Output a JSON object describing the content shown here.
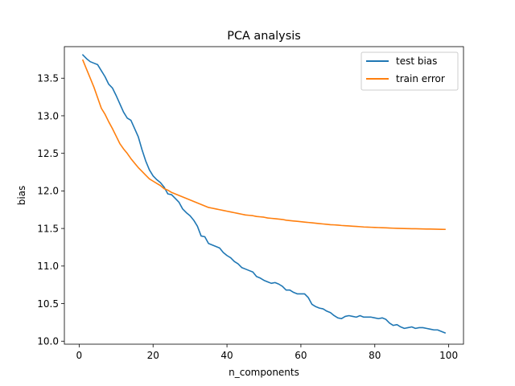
{
  "chart_data": {
    "type": "line",
    "title": "PCA analysis",
    "xlabel": "n_components",
    "ylabel": "bias",
    "xlim": [
      -4,
      104
    ],
    "ylim": [
      9.96,
      13.92
    ],
    "xticks": [
      0,
      20,
      40,
      60,
      80,
      100
    ],
    "yticks": [
      10.0,
      10.5,
      11.0,
      11.5,
      12.0,
      12.5,
      13.0,
      13.5
    ],
    "ytick_labels": [
      "10.0",
      "10.5",
      "11.0",
      "11.5",
      "12.0",
      "12.5",
      "13.0",
      "13.5"
    ],
    "grid": false,
    "legend_position": "top-right",
    "series": [
      {
        "name": "test bias",
        "color": "#1f77b4",
        "points": [
          [
            1,
            13.81
          ],
          [
            2,
            13.76
          ],
          [
            3,
            13.72
          ],
          [
            4,
            13.7
          ],
          [
            5,
            13.68
          ],
          [
            6,
            13.6
          ],
          [
            7,
            13.52
          ],
          [
            8,
            13.42
          ],
          [
            9,
            13.37
          ],
          [
            10,
            13.27
          ],
          [
            11,
            13.16
          ],
          [
            12,
            13.05
          ],
          [
            13,
            12.97
          ],
          [
            14,
            12.94
          ],
          [
            15,
            12.83
          ],
          [
            16,
            12.72
          ],
          [
            17,
            12.55
          ],
          [
            18,
            12.4
          ],
          [
            19,
            12.28
          ],
          [
            20,
            12.2
          ],
          [
            21,
            12.15
          ],
          [
            22,
            12.11
          ],
          [
            23,
            12.05
          ],
          [
            24,
            11.96
          ],
          [
            25,
            11.95
          ],
          [
            26,
            11.9
          ],
          [
            27,
            11.85
          ],
          [
            28,
            11.76
          ],
          [
            29,
            11.71
          ],
          [
            30,
            11.67
          ],
          [
            31,
            11.61
          ],
          [
            32,
            11.53
          ],
          [
            33,
            11.4
          ],
          [
            34,
            11.39
          ],
          [
            35,
            11.3
          ],
          [
            36,
            11.28
          ],
          [
            37,
            11.26
          ],
          [
            38,
            11.24
          ],
          [
            39,
            11.18
          ],
          [
            40,
            11.14
          ],
          [
            41,
            11.11
          ],
          [
            42,
            11.06
          ],
          [
            43,
            11.03
          ],
          [
            44,
            10.98
          ],
          [
            45,
            10.96
          ],
          [
            46,
            10.94
          ],
          [
            47,
            10.92
          ],
          [
            48,
            10.86
          ],
          [
            49,
            10.84
          ],
          [
            50,
            10.81
          ],
          [
            51,
            10.79
          ],
          [
            52,
            10.77
          ],
          [
            53,
            10.78
          ],
          [
            54,
            10.76
          ],
          [
            55,
            10.73
          ],
          [
            56,
            10.68
          ],
          [
            57,
            10.68
          ],
          [
            58,
            10.65
          ],
          [
            59,
            10.63
          ],
          [
            60,
            10.63
          ],
          [
            61,
            10.63
          ],
          [
            62,
            10.58
          ],
          [
            63,
            10.49
          ],
          [
            64,
            10.46
          ],
          [
            65,
            10.44
          ],
          [
            66,
            10.43
          ],
          [
            67,
            10.4
          ],
          [
            68,
            10.38
          ],
          [
            69,
            10.34
          ],
          [
            70,
            10.31
          ],
          [
            71,
            10.3
          ],
          [
            72,
            10.33
          ],
          [
            73,
            10.34
          ],
          [
            74,
            10.33
          ],
          [
            75,
            10.32
          ],
          [
            76,
            10.34
          ],
          [
            77,
            10.32
          ],
          [
            78,
            10.32
          ],
          [
            79,
            10.32
          ],
          [
            80,
            10.31
          ],
          [
            81,
            10.3
          ],
          [
            82,
            10.31
          ],
          [
            83,
            10.29
          ],
          [
            84,
            10.24
          ],
          [
            85,
            10.21
          ],
          [
            86,
            10.22
          ],
          [
            87,
            10.19
          ],
          [
            88,
            10.17
          ],
          [
            89,
            10.18
          ],
          [
            90,
            10.19
          ],
          [
            91,
            10.17
          ],
          [
            92,
            10.18
          ],
          [
            93,
            10.18
          ],
          [
            94,
            10.17
          ],
          [
            95,
            10.16
          ],
          [
            96,
            10.15
          ],
          [
            97,
            10.15
          ],
          [
            98,
            10.13
          ],
          [
            99,
            10.11
          ]
        ]
      },
      {
        "name": "train error",
        "color": "#ff7f0e",
        "points": [
          [
            1,
            13.74
          ],
          [
            2,
            13.62
          ],
          [
            3,
            13.5
          ],
          [
            4,
            13.38
          ],
          [
            5,
            13.24
          ],
          [
            6,
            13.1
          ],
          [
            7,
            13.02
          ],
          [
            8,
            12.92
          ],
          [
            9,
            12.83
          ],
          [
            10,
            12.73
          ],
          [
            11,
            12.63
          ],
          [
            12,
            12.56
          ],
          [
            13,
            12.5
          ],
          [
            14,
            12.43
          ],
          [
            15,
            12.37
          ],
          [
            16,
            12.31
          ],
          [
            17,
            12.26
          ],
          [
            18,
            12.21
          ],
          [
            19,
            12.16
          ],
          [
            20,
            12.13
          ],
          [
            21,
            12.1
          ],
          [
            22,
            12.07
          ],
          [
            23,
            12.03
          ],
          [
            24,
            12.01
          ],
          [
            25,
            11.98
          ],
          [
            26,
            11.96
          ],
          [
            27,
            11.94
          ],
          [
            28,
            11.92
          ],
          [
            29,
            11.9
          ],
          [
            30,
            11.88
          ],
          [
            31,
            11.86
          ],
          [
            32,
            11.84
          ],
          [
            33,
            11.82
          ],
          [
            34,
            11.8
          ],
          [
            35,
            11.78
          ],
          [
            36,
            11.77
          ],
          [
            37,
            11.76
          ],
          [
            38,
            11.75
          ],
          [
            39,
            11.74
          ],
          [
            40,
            11.73
          ],
          [
            41,
            11.72
          ],
          [
            42,
            11.71
          ],
          [
            43,
            11.7
          ],
          [
            44,
            11.69
          ],
          [
            45,
            11.68
          ],
          [
            46,
            11.675
          ],
          [
            47,
            11.67
          ],
          [
            48,
            11.66
          ],
          [
            49,
            11.655
          ],
          [
            50,
            11.65
          ],
          [
            51,
            11.64
          ],
          [
            52,
            11.635
          ],
          [
            53,
            11.63
          ],
          [
            54,
            11.625
          ],
          [
            55,
            11.62
          ],
          [
            56,
            11.61
          ],
          [
            57,
            11.605
          ],
          [
            58,
            11.6
          ],
          [
            59,
            11.595
          ],
          [
            60,
            11.59
          ],
          [
            61,
            11.585
          ],
          [
            62,
            11.58
          ],
          [
            63,
            11.575
          ],
          [
            64,
            11.57
          ],
          [
            65,
            11.565
          ],
          [
            66,
            11.56
          ],
          [
            67,
            11.555
          ],
          [
            68,
            11.55
          ],
          [
            69,
            11.548
          ],
          [
            70,
            11.545
          ],
          [
            71,
            11.54
          ],
          [
            72,
            11.537
          ],
          [
            73,
            11.534
          ],
          [
            74,
            11.53
          ],
          [
            75,
            11.527
          ],
          [
            76,
            11.524
          ],
          [
            77,
            11.52
          ],
          [
            78,
            11.518
          ],
          [
            79,
            11.516
          ],
          [
            80,
            11.514
          ],
          [
            81,
            11.512
          ],
          [
            82,
            11.51
          ],
          [
            83,
            11.508
          ],
          [
            84,
            11.506
          ],
          [
            85,
            11.504
          ],
          [
            86,
            11.502
          ],
          [
            87,
            11.5
          ],
          [
            88,
            11.499
          ],
          [
            89,
            11.498
          ],
          [
            90,
            11.497
          ],
          [
            91,
            11.496
          ],
          [
            92,
            11.495
          ],
          [
            93,
            11.494
          ],
          [
            94,
            11.493
          ],
          [
            95,
            11.492
          ],
          [
            96,
            11.491
          ],
          [
            97,
            11.49
          ],
          [
            98,
            11.489
          ],
          [
            99,
            11.488
          ]
        ]
      }
    ]
  }
}
